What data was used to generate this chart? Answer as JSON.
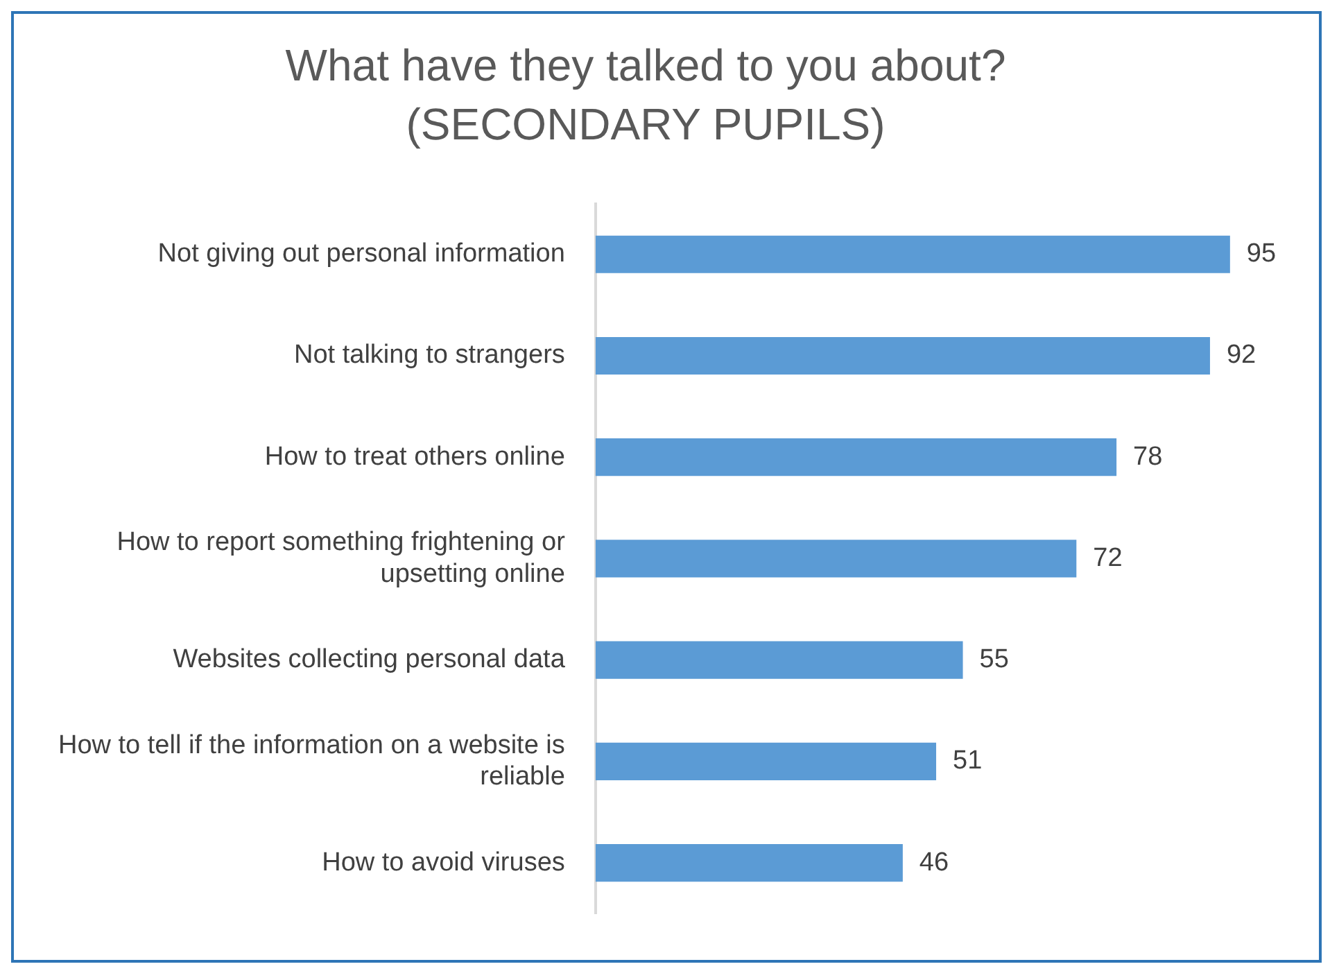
{
  "chart_data": {
    "type": "bar",
    "orientation": "horizontal",
    "title": "What have they talked to you about?",
    "subtitle": "(SECONDARY PUPILS)",
    "categories": [
      "Not giving out personal information",
      "Not talking to strangers",
      "How to treat others online",
      "How to report something frightening or upsetting online",
      "Websites collecting personal data",
      "How to tell if the information on a website is reliable",
      "How to avoid viruses"
    ],
    "values": [
      95,
      92,
      78,
      72,
      55,
      51,
      46
    ],
    "color": "#5b9bd5",
    "data_labels": true,
    "grid": false,
    "legend": false
  }
}
